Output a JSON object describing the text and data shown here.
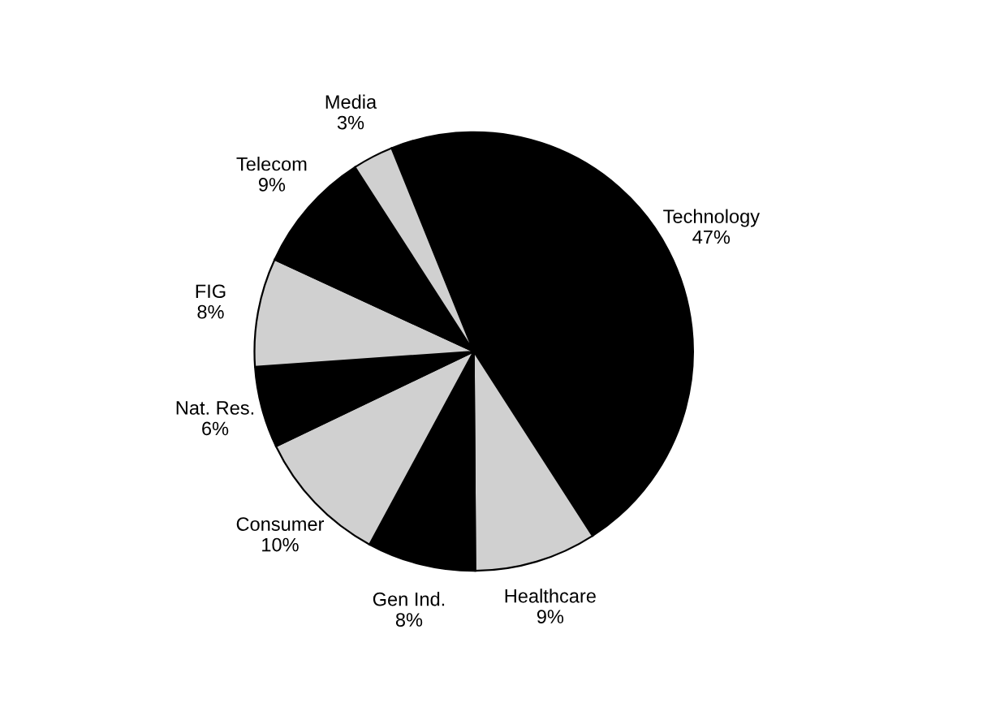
{
  "chart_data": {
    "type": "pie",
    "categories": [
      "Technology",
      "Healthcare",
      "Gen Ind.",
      "Consumer",
      "Nat. Res.",
      "FIG",
      "Telecom",
      "Media"
    ],
    "values": [
      47,
      9,
      8,
      10,
      6,
      8,
      9,
      3
    ],
    "colors": [
      "#000000",
      "#d0d0d0",
      "#000000",
      "#d0d0d0",
      "#000000",
      "#d0d0d0",
      "#000000",
      "#d0d0d0"
    ],
    "value_labels": [
      "47%",
      "9%",
      "8%",
      "10%",
      "6%",
      "8%",
      "9%",
      "3%"
    ]
  }
}
